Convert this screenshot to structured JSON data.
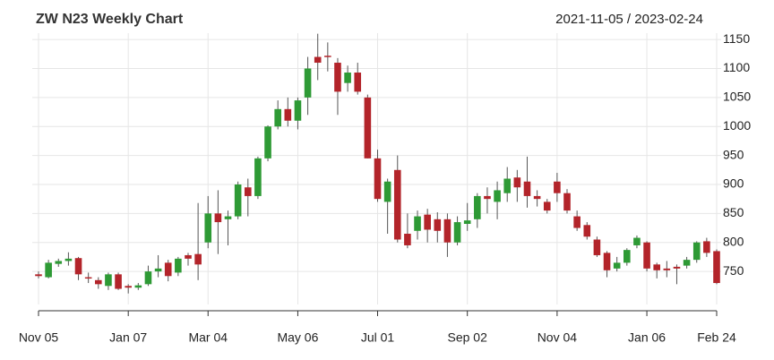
{
  "chart_data": {
    "type": "candlestick",
    "title": "ZW N23 Weekly Chart",
    "date_range": "2021-11-05 / 2023-02-24",
    "categories": [
      "Nov 05",
      null,
      null,
      null,
      null,
      null,
      null,
      null,
      null,
      "Jan 07",
      null,
      null,
      null,
      null,
      null,
      null,
      null,
      "Mar 04",
      null,
      null,
      null,
      null,
      null,
      null,
      null,
      null,
      "May 06",
      null,
      null,
      null,
      null,
      null,
      null,
      null,
      "Jul 01",
      null,
      null,
      null,
      null,
      null,
      null,
      null,
      null,
      "Sep 02",
      null,
      null,
      null,
      null,
      null,
      null,
      null,
      null,
      "Nov 04",
      null,
      null,
      null,
      null,
      null,
      null,
      null,
      null,
      "Jan 06",
      null,
      null,
      null,
      null,
      null,
      null,
      "Feb 24"
    ],
    "open": [
      745,
      740,
      763,
      768,
      773,
      740,
      735,
      725,
      745,
      725,
      722,
      728,
      750,
      765,
      748,
      778,
      780,
      800,
      850,
      840,
      845,
      895,
      880,
      945,
      1000,
      1030,
      1010,
      1050,
      1120,
      1122,
      1110,
      1075,
      1093,
      1050,
      945,
      870,
      925,
      815,
      820,
      848,
      840,
      840,
      800,
      832,
      840,
      880,
      870,
      885,
      912,
      905,
      880,
      870,
      905,
      885,
      845,
      830,
      805,
      782,
      755,
      765,
      795,
      800,
      762,
      755,
      758,
      760,
      770,
      802,
      785
    ],
    "high": [
      750,
      770,
      772,
      783,
      775,
      748,
      740,
      748,
      748,
      728,
      730,
      760,
      778,
      770,
      775,
      782,
      868,
      880,
      890,
      855,
      905,
      910,
      948,
      1002,
      1045,
      1050,
      1050,
      1120,
      1160,
      1145,
      1118,
      1105,
      1110,
      1055,
      960,
      910,
      950,
      850,
      855,
      858,
      852,
      850,
      845,
      868,
      885,
      895,
      905,
      930,
      925,
      948,
      890,
      875,
      920,
      892,
      855,
      835,
      810,
      785,
      775,
      790,
      812,
      802,
      765,
      768,
      762,
      775,
      802,
      808,
      788
    ],
    "low": [
      738,
      738,
      758,
      760,
      735,
      730,
      720,
      718,
      718,
      712,
      718,
      725,
      740,
      733,
      742,
      760,
      735,
      790,
      780,
      795,
      840,
      845,
      875,
      940,
      995,
      1000,
      995,
      1020,
      1080,
      1095,
      1020,
      1060,
      1055,
      945,
      870,
      815,
      800,
      790,
      805,
      800,
      800,
      775,
      795,
      820,
      825,
      850,
      840,
      870,
      870,
      860,
      862,
      850,
      870,
      850,
      820,
      805,
      775,
      740,
      750,
      760,
      790,
      750,
      738,
      740,
      728,
      755,
      765,
      775,
      728
    ],
    "close": [
      742,
      765,
      768,
      772,
      745,
      738,
      728,
      745,
      720,
      722,
      726,
      750,
      755,
      742,
      772,
      772,
      762,
      850,
      835,
      845,
      900,
      880,
      945,
      1000,
      1030,
      1010,
      1045,
      1100,
      1110,
      1120,
      1060,
      1093,
      1060,
      945,
      875,
      905,
      805,
      795,
      845,
      822,
      820,
      800,
      835,
      838,
      880,
      875,
      890,
      910,
      895,
      880,
      875,
      855,
      885,
      855,
      825,
      810,
      778,
      752,
      765,
      787,
      808,
      755,
      752,
      752,
      755,
      770,
      800,
      782,
      730
    ],
    "up_color": "#2e9a35",
    "down_color": "#b3242a",
    "ylim": [
      693,
      1161
    ],
    "yticks": [
      750,
      800,
      850,
      900,
      950,
      1000,
      1050,
      1100,
      1150
    ],
    "grid": true
  }
}
